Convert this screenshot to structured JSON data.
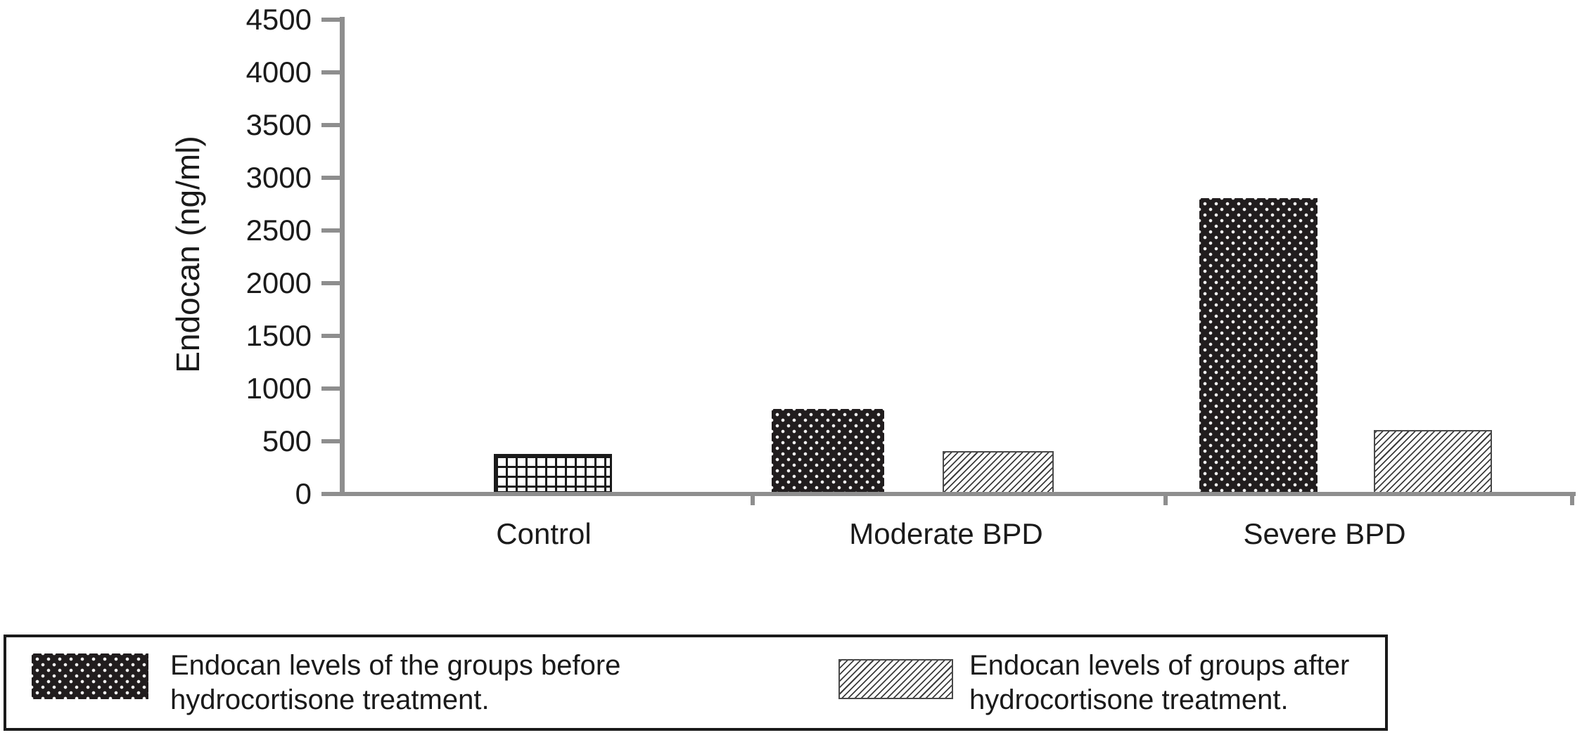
{
  "figure": {
    "background": "#ffffff",
    "axis_color": "#8e8e8e",
    "text_color": "#1a1a1a",
    "bar_dark_color": "#211d1e"
  },
  "chart_data": {
    "type": "bar",
    "title": "",
    "xlabel": "",
    "ylabel": "Endocan (ng/ml)",
    "y_axis": {
      "min": 0,
      "max": 4500,
      "step": 500
    },
    "grid": false,
    "legend_position": "bottom",
    "categories": [
      "Control",
      "Moderate BPD",
      "Severe BPD"
    ],
    "series": [
      {
        "key": "before",
        "name": "Endocan levels of the groups before hydrocortisone treatment.",
        "pattern": "black-with-white-dots"
      },
      {
        "key": "after",
        "name": "Endocan levels of groups after hydrocortisone treatment.",
        "pattern": "diagonal-hatch"
      }
    ],
    "bars": [
      {
        "category": "Control",
        "series": "after",
        "value": 375,
        "pattern": "grid"
      },
      {
        "category": "Moderate BPD",
        "series": "before",
        "value": 800,
        "pattern": "dots"
      },
      {
        "category": "Moderate BPD",
        "series": "after",
        "value": 400,
        "pattern": "hatch"
      },
      {
        "category": "Severe BPD",
        "series": "before",
        "value": 2800,
        "pattern": "dots"
      },
      {
        "category": "Severe BPD",
        "series": "after",
        "value": 600,
        "pattern": "hatch"
      }
    ]
  },
  "legend": {
    "items": [
      {
        "pattern": "dots",
        "line1": "Endocan levels of the groups before",
        "line2": "hydrocortisone treatment."
      },
      {
        "pattern": "hatch",
        "line1": "Endocan levels of groups after",
        "line2": "hydrocortisone treatment."
      }
    ]
  }
}
